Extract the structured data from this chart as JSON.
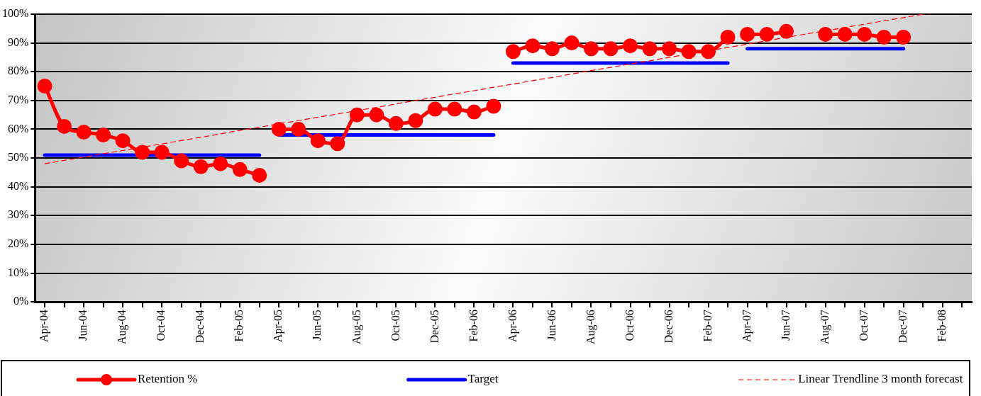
{
  "chart_data": {
    "type": "line",
    "categories": [
      "Apr-04",
      null,
      "Jun-04",
      null,
      "Aug-04",
      null,
      "Oct-04",
      null,
      "Dec-04",
      null,
      "Feb-05",
      null,
      "Apr-05",
      null,
      "Jun-05",
      null,
      "Aug-05",
      null,
      "Oct-05",
      null,
      "Dec-05",
      null,
      "Feb-06",
      null,
      "Apr-06",
      null,
      "Jun-06",
      null,
      "Aug-06",
      null,
      "Oct-06",
      null,
      "Dec-06",
      null,
      "Feb-07",
      null,
      "Apr-07",
      null,
      "Jun-07",
      null,
      "Aug-07",
      null,
      "Oct-07",
      null,
      "Dec-07",
      null,
      "Feb-08",
      null
    ],
    "series": [
      {
        "name": "Retention %",
        "color": "#ff0000",
        "marker": "circle",
        "values": [
          75,
          61,
          59,
          58,
          56,
          52,
          52,
          49,
          47,
          48,
          46,
          44,
          null,
          null,
          null,
          null,
          null,
          null,
          null,
          null,
          null,
          null,
          null,
          null,
          null,
          null,
          null,
          null,
          null,
          null,
          null,
          null,
          null,
          null,
          null,
          null,
          null,
          null,
          null,
          null,
          null,
          null,
          null,
          null,
          null,
          null,
          null,
          null
        ]
      },
      {
        "color": "#ff0000",
        "marker": "circle",
        "values": [
          null,
          null,
          null,
          null,
          null,
          null,
          null,
          null,
          null,
          null,
          null,
          null,
          60,
          60,
          56,
          55,
          65,
          65,
          62,
          63,
          67,
          67,
          66,
          68,
          null,
          null,
          null,
          null,
          null,
          null,
          null,
          null,
          null,
          null,
          null,
          null,
          null,
          null,
          null,
          null,
          null,
          null,
          null,
          null,
          null,
          null,
          null,
          null
        ]
      },
      {
        "color": "#ff0000",
        "marker": "circle",
        "values": [
          null,
          null,
          null,
          null,
          null,
          null,
          null,
          null,
          null,
          null,
          null,
          null,
          null,
          null,
          null,
          null,
          null,
          null,
          null,
          null,
          null,
          null,
          null,
          null,
          87,
          89,
          88,
          90,
          88,
          88,
          89,
          88,
          88,
          87,
          87,
          92,
          null,
          null,
          null,
          null,
          null,
          null,
          null,
          null,
          null,
          null,
          null,
          null
        ]
      },
      {
        "color": "#ff0000",
        "marker": "circle",
        "values": [
          null,
          null,
          null,
          null,
          null,
          null,
          null,
          null,
          null,
          null,
          null,
          null,
          null,
          null,
          null,
          null,
          null,
          null,
          null,
          null,
          null,
          null,
          null,
          null,
          null,
          null,
          null,
          null,
          null,
          null,
          null,
          null,
          null,
          null,
          null,
          null,
          93,
          93,
          94,
          null,
          93,
          93,
          93,
          92,
          92,
          null,
          null,
          null
        ]
      },
      {
        "name": "Target",
        "color": "#0000ff",
        "marker": "none",
        "values": [
          51,
          51,
          51,
          51,
          51,
          51,
          51,
          51,
          51,
          51,
          51,
          51,
          null,
          null,
          null,
          null,
          null,
          null,
          null,
          null,
          null,
          null,
          null,
          null,
          null,
          null,
          null,
          null,
          null,
          null,
          null,
          null,
          null,
          null,
          null,
          null,
          null,
          null,
          null,
          null,
          null,
          null,
          null,
          null,
          null,
          null,
          null,
          null
        ]
      },
      {
        "color": "#0000ff",
        "marker": "none",
        "values": [
          null,
          null,
          null,
          null,
          null,
          null,
          null,
          null,
          null,
          null,
          null,
          null,
          58,
          58,
          58,
          58,
          58,
          58,
          58,
          58,
          58,
          58,
          58,
          58,
          null,
          null,
          null,
          null,
          null,
          null,
          null,
          null,
          null,
          null,
          null,
          null,
          null,
          null,
          null,
          null,
          null,
          null,
          null,
          null,
          null,
          null,
          null,
          null
        ]
      },
      {
        "color": "#0000ff",
        "marker": "none",
        "values": [
          null,
          null,
          null,
          null,
          null,
          null,
          null,
          null,
          null,
          null,
          null,
          null,
          null,
          null,
          null,
          null,
          null,
          null,
          null,
          null,
          null,
          null,
          null,
          null,
          83,
          83,
          83,
          83,
          83,
          83,
          83,
          83,
          83,
          83,
          83,
          83,
          null,
          null,
          null,
          null,
          null,
          null,
          null,
          null,
          null,
          null,
          null,
          null
        ]
      },
      {
        "color": "#0000ff",
        "marker": "none",
        "values": [
          null,
          null,
          null,
          null,
          null,
          null,
          null,
          null,
          null,
          null,
          null,
          null,
          null,
          null,
          null,
          null,
          null,
          null,
          null,
          null,
          null,
          null,
          null,
          null,
          null,
          null,
          null,
          null,
          null,
          null,
          null,
          null,
          null,
          null,
          null,
          null,
          88,
          88,
          88,
          88,
          88,
          88,
          88,
          88,
          88,
          null,
          null,
          null
        ]
      },
      {
        "name": "Linear Trendline 3 month forecast",
        "color": "#ff0000",
        "marker": "none",
        "line_style": "dashed",
        "values": [
          48.0,
          49.2,
          50.3,
          51.5,
          52.6,
          53.8,
          54.9,
          56.1,
          57.2,
          58.4,
          59.6,
          60.7,
          61.9,
          63.0,
          64.2,
          65.3,
          66.5,
          67.6,
          68.8,
          70.0,
          71.1,
          72.3,
          73.4,
          74.6,
          75.7,
          76.9,
          78.0,
          79.2,
          80.4,
          81.5,
          82.7,
          83.8,
          85.0,
          86.1,
          87.3,
          88.4,
          89.6,
          90.8,
          91.9,
          93.1,
          94.2,
          95.4,
          96.5,
          97.7,
          98.8,
          100.0,
          null,
          null
        ]
      }
    ],
    "ylim": [
      0,
      100
    ],
    "yticks": [
      {
        "value": 0,
        "label": "0%"
      },
      {
        "value": 10,
        "label": "10%"
      },
      {
        "value": 20,
        "label": "20%"
      },
      {
        "value": 30,
        "label": "30%"
      },
      {
        "value": 40,
        "label": "40%"
      },
      {
        "value": 50,
        "label": "50%"
      },
      {
        "value": 60,
        "label": "60%"
      },
      {
        "value": 70,
        "label": "70%"
      },
      {
        "value": 80,
        "label": "80%"
      },
      {
        "value": 90,
        "label": "90%"
      },
      {
        "value": 100,
        "label": "100%"
      }
    ],
    "grid": "y",
    "legend": "bottom"
  }
}
